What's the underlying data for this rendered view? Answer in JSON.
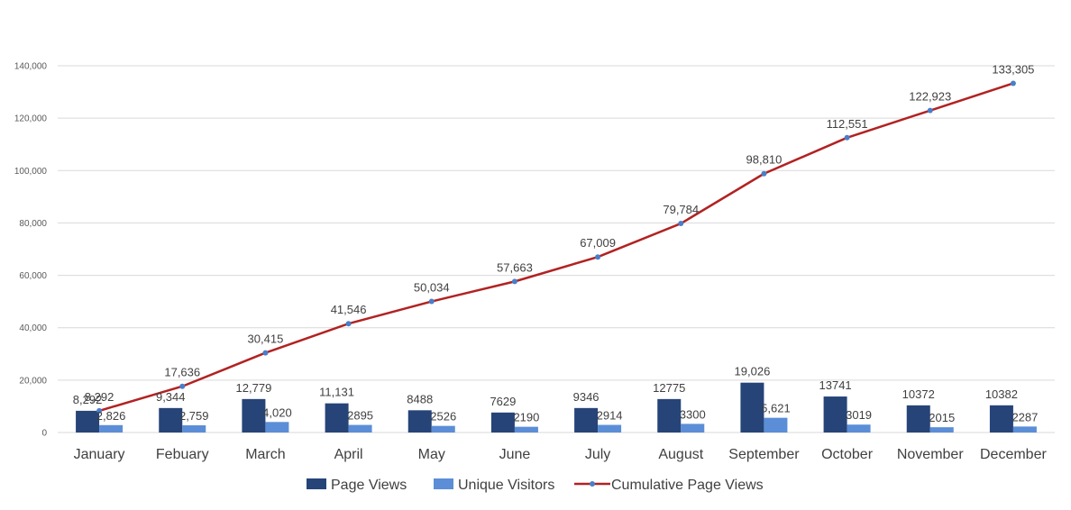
{
  "chart_data": {
    "type": "bar+line",
    "title": "",
    "xlabel": "",
    "ylabel": "",
    "ylim": [
      0,
      140000
    ],
    "yticks": [
      0,
      20000,
      40000,
      60000,
      80000,
      100000,
      120000,
      140000
    ],
    "ytick_labels": [
      "0",
      "20,000",
      "40,000",
      "60,000",
      "80,000",
      "100,000",
      "120,000",
      "140,000"
    ],
    "grid": true,
    "legend_position": "bottom",
    "categories": [
      "January",
      "Febuary",
      "March",
      "April",
      "May",
      "June",
      "July",
      "August",
      "September",
      "October",
      "November",
      "December"
    ],
    "series": [
      {
        "name": "Page Views",
        "kind": "bar",
        "color": "#264478",
        "values": [
          8292,
          9344,
          12779,
          11131,
          8488,
          7629,
          9346,
          12775,
          19026,
          13741,
          10372,
          10382
        ],
        "labels": [
          "8,292",
          "9,344",
          "12,779",
          "11,131",
          "8488",
          "7629",
          "9346",
          "12775",
          "19,026",
          "13741",
          "10372",
          "10382"
        ]
      },
      {
        "name": "Unique Visitors",
        "kind": "bar",
        "color": "#5B8ED6",
        "values": [
          2826,
          2759,
          4020,
          2895,
          2526,
          2190,
          2914,
          3300,
          5621,
          3019,
          2015,
          2287
        ],
        "labels": [
          "2,826",
          "2,759",
          "4,020",
          "2895",
          "2526",
          "2190",
          "2914",
          "3300",
          "5,621",
          "3019",
          "2015",
          "2287"
        ]
      },
      {
        "name": "Cumulative Page Views",
        "kind": "line",
        "color": "#B22222",
        "marker_color": "#4A7EC8",
        "values": [
          8292,
          17636,
          30415,
          41546,
          50034,
          57663,
          67009,
          79784,
          98810,
          112551,
          122923,
          133305
        ],
        "labels": [
          "8,292",
          "17,636",
          "30,415",
          "41,546",
          "50,034",
          "57,663",
          "67,009",
          "79,784",
          "98,810",
          "112,551",
          "122,923",
          "133,305"
        ]
      }
    ]
  }
}
